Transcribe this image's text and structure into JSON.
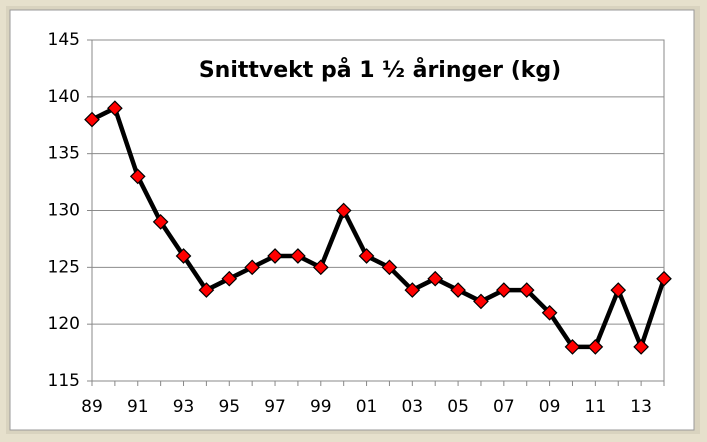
{
  "chart_data": {
    "type": "line",
    "title": "Snittvekt på 1 ½ åringer (kg)",
    "categories": [
      "89",
      null,
      "91",
      null,
      "93",
      null,
      "95",
      null,
      "97",
      null,
      "99",
      null,
      "01",
      null,
      "03",
      null,
      "05",
      null,
      "07",
      null,
      "09",
      null,
      "11",
      null,
      "13",
      null
    ],
    "values": [
      138,
      139,
      133,
      129,
      126,
      123,
      124,
      125,
      126,
      126,
      125,
      130,
      126,
      125,
      123,
      124,
      123,
      122,
      123,
      123,
      121,
      118,
      118,
      123,
      118,
      124
    ],
    "color": "#000000",
    "marker_color": "#ff0000",
    "ylim": [
      115,
      145
    ],
    "yticks": [
      115,
      120,
      125,
      130,
      135,
      140,
      145
    ],
    "grid": true
  }
}
